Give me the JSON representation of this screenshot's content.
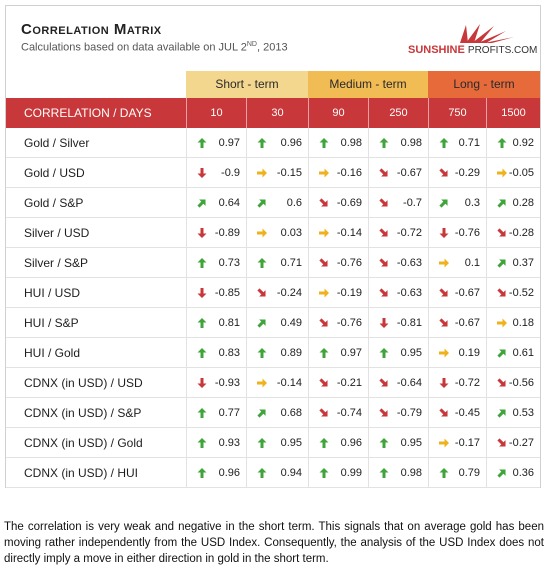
{
  "header": {
    "title": "Correlation Matrix",
    "subtitle_prefix": "Calculations based on data available on  JUL 2",
    "subtitle_sup": "ND",
    "subtitle_suffix": ", 2013",
    "logo_main": "SUNSHINE",
    "logo_sub": "PROFITS.COM"
  },
  "bands": [
    {
      "label": "Short - term",
      "color": "#f4d78e"
    },
    {
      "label": "Medium - term",
      "color": "#f2bc55"
    },
    {
      "label": "Long - term",
      "color": "#e66a3a"
    }
  ],
  "colors": {
    "header_red": "#c8373a",
    "arrow_up": "#3fa53b",
    "arrow_flat": "#f0b21c",
    "arrow_down": "#c8373a"
  },
  "columns": {
    "label": "CORRELATION / DAYS",
    "days": [
      "10",
      "30",
      "90",
      "250",
      "750",
      "1500"
    ]
  },
  "rows": [
    {
      "label": "Gold / Silver",
      "cells": [
        {
          "v": "0.97",
          "d": "up"
        },
        {
          "v": "0.96",
          "d": "up"
        },
        {
          "v": "0.98",
          "d": "up"
        },
        {
          "v": "0.98",
          "d": "up"
        },
        {
          "v": "0.71",
          "d": "up"
        },
        {
          "v": "0.92",
          "d": "up"
        }
      ]
    },
    {
      "label": "Gold / USD",
      "cells": [
        {
          "v": "-0.9",
          "d": "down"
        },
        {
          "v": "-0.15",
          "d": "flat"
        },
        {
          "v": "-0.16",
          "d": "flat"
        },
        {
          "v": "-0.67",
          "d": "sdown"
        },
        {
          "v": "-0.29",
          "d": "sdown"
        },
        {
          "v": "-0.05",
          "d": "flat"
        }
      ]
    },
    {
      "label": "Gold / S&P",
      "cells": [
        {
          "v": "0.64",
          "d": "sup"
        },
        {
          "v": "0.6",
          "d": "sup"
        },
        {
          "v": "-0.69",
          "d": "sdown"
        },
        {
          "v": "-0.7",
          "d": "sdown"
        },
        {
          "v": "0.3",
          "d": "sup"
        },
        {
          "v": "0.28",
          "d": "sup"
        }
      ]
    },
    {
      "label": "Silver / USD",
      "cells": [
        {
          "v": "-0.89",
          "d": "down"
        },
        {
          "v": "0.03",
          "d": "flat"
        },
        {
          "v": "-0.14",
          "d": "flat"
        },
        {
          "v": "-0.72",
          "d": "sdown"
        },
        {
          "v": "-0.76",
          "d": "down"
        },
        {
          "v": "-0.28",
          "d": "sdown"
        }
      ]
    },
    {
      "label": "Silver / S&P",
      "cells": [
        {
          "v": "0.73",
          "d": "up"
        },
        {
          "v": "0.71",
          "d": "up"
        },
        {
          "v": "-0.76",
          "d": "sdown"
        },
        {
          "v": "-0.63",
          "d": "sdown"
        },
        {
          "v": "0.1",
          "d": "flat"
        },
        {
          "v": "0.37",
          "d": "sup"
        }
      ]
    },
    {
      "label": "HUI / USD",
      "cells": [
        {
          "v": "-0.85",
          "d": "down"
        },
        {
          "v": "-0.24",
          "d": "sdown"
        },
        {
          "v": "-0.19",
          "d": "flat"
        },
        {
          "v": "-0.63",
          "d": "sdown"
        },
        {
          "v": "-0.67",
          "d": "sdown"
        },
        {
          "v": "-0.52",
          "d": "sdown"
        }
      ]
    },
    {
      "label": "HUI / S&P",
      "cells": [
        {
          "v": "0.81",
          "d": "up"
        },
        {
          "v": "0.49",
          "d": "sup"
        },
        {
          "v": "-0.76",
          "d": "sdown"
        },
        {
          "v": "-0.81",
          "d": "down"
        },
        {
          "v": "-0.67",
          "d": "sdown"
        },
        {
          "v": "0.18",
          "d": "flat"
        }
      ]
    },
    {
      "label": "HUI / Gold",
      "cells": [
        {
          "v": "0.83",
          "d": "up"
        },
        {
          "v": "0.89",
          "d": "up"
        },
        {
          "v": "0.97",
          "d": "up"
        },
        {
          "v": "0.95",
          "d": "up"
        },
        {
          "v": "0.19",
          "d": "flat"
        },
        {
          "v": "0.61",
          "d": "sup"
        }
      ]
    },
    {
      "label": "CDNX (in USD) / USD",
      "cells": [
        {
          "v": "-0.93",
          "d": "down"
        },
        {
          "v": "-0.14",
          "d": "flat"
        },
        {
          "v": "-0.21",
          "d": "sdown"
        },
        {
          "v": "-0.64",
          "d": "sdown"
        },
        {
          "v": "-0.72",
          "d": "down"
        },
        {
          "v": "-0.56",
          "d": "sdown"
        }
      ]
    },
    {
      "label": "CDNX (in USD) / S&P",
      "cells": [
        {
          "v": "0.77",
          "d": "up"
        },
        {
          "v": "0.68",
          "d": "sup"
        },
        {
          "v": "-0.74",
          "d": "sdown"
        },
        {
          "v": "-0.79",
          "d": "sdown"
        },
        {
          "v": "-0.45",
          "d": "sdown"
        },
        {
          "v": "0.53",
          "d": "sup"
        }
      ]
    },
    {
      "label": "CDNX (in USD) / Gold",
      "cells": [
        {
          "v": "0.93",
          "d": "up"
        },
        {
          "v": "0.95",
          "d": "up"
        },
        {
          "v": "0.96",
          "d": "up"
        },
        {
          "v": "0.95",
          "d": "up"
        },
        {
          "v": "-0.17",
          "d": "flat"
        },
        {
          "v": "-0.27",
          "d": "sdown"
        }
      ]
    },
    {
      "label": "CDNX (in USD) / HUI",
      "cells": [
        {
          "v": "0.96",
          "d": "up"
        },
        {
          "v": "0.94",
          "d": "up"
        },
        {
          "v": "0.99",
          "d": "up"
        },
        {
          "v": "0.98",
          "d": "up"
        },
        {
          "v": "0.79",
          "d": "up"
        },
        {
          "v": "0.36",
          "d": "sup"
        }
      ]
    }
  ],
  "note": "The correlation is very weak and negative in the short term. This signals that on average gold has been moving rather independently from the USD Index. Consequently, the analysis of the USD Index does not directly imply a move in either direction in gold in the short term."
}
